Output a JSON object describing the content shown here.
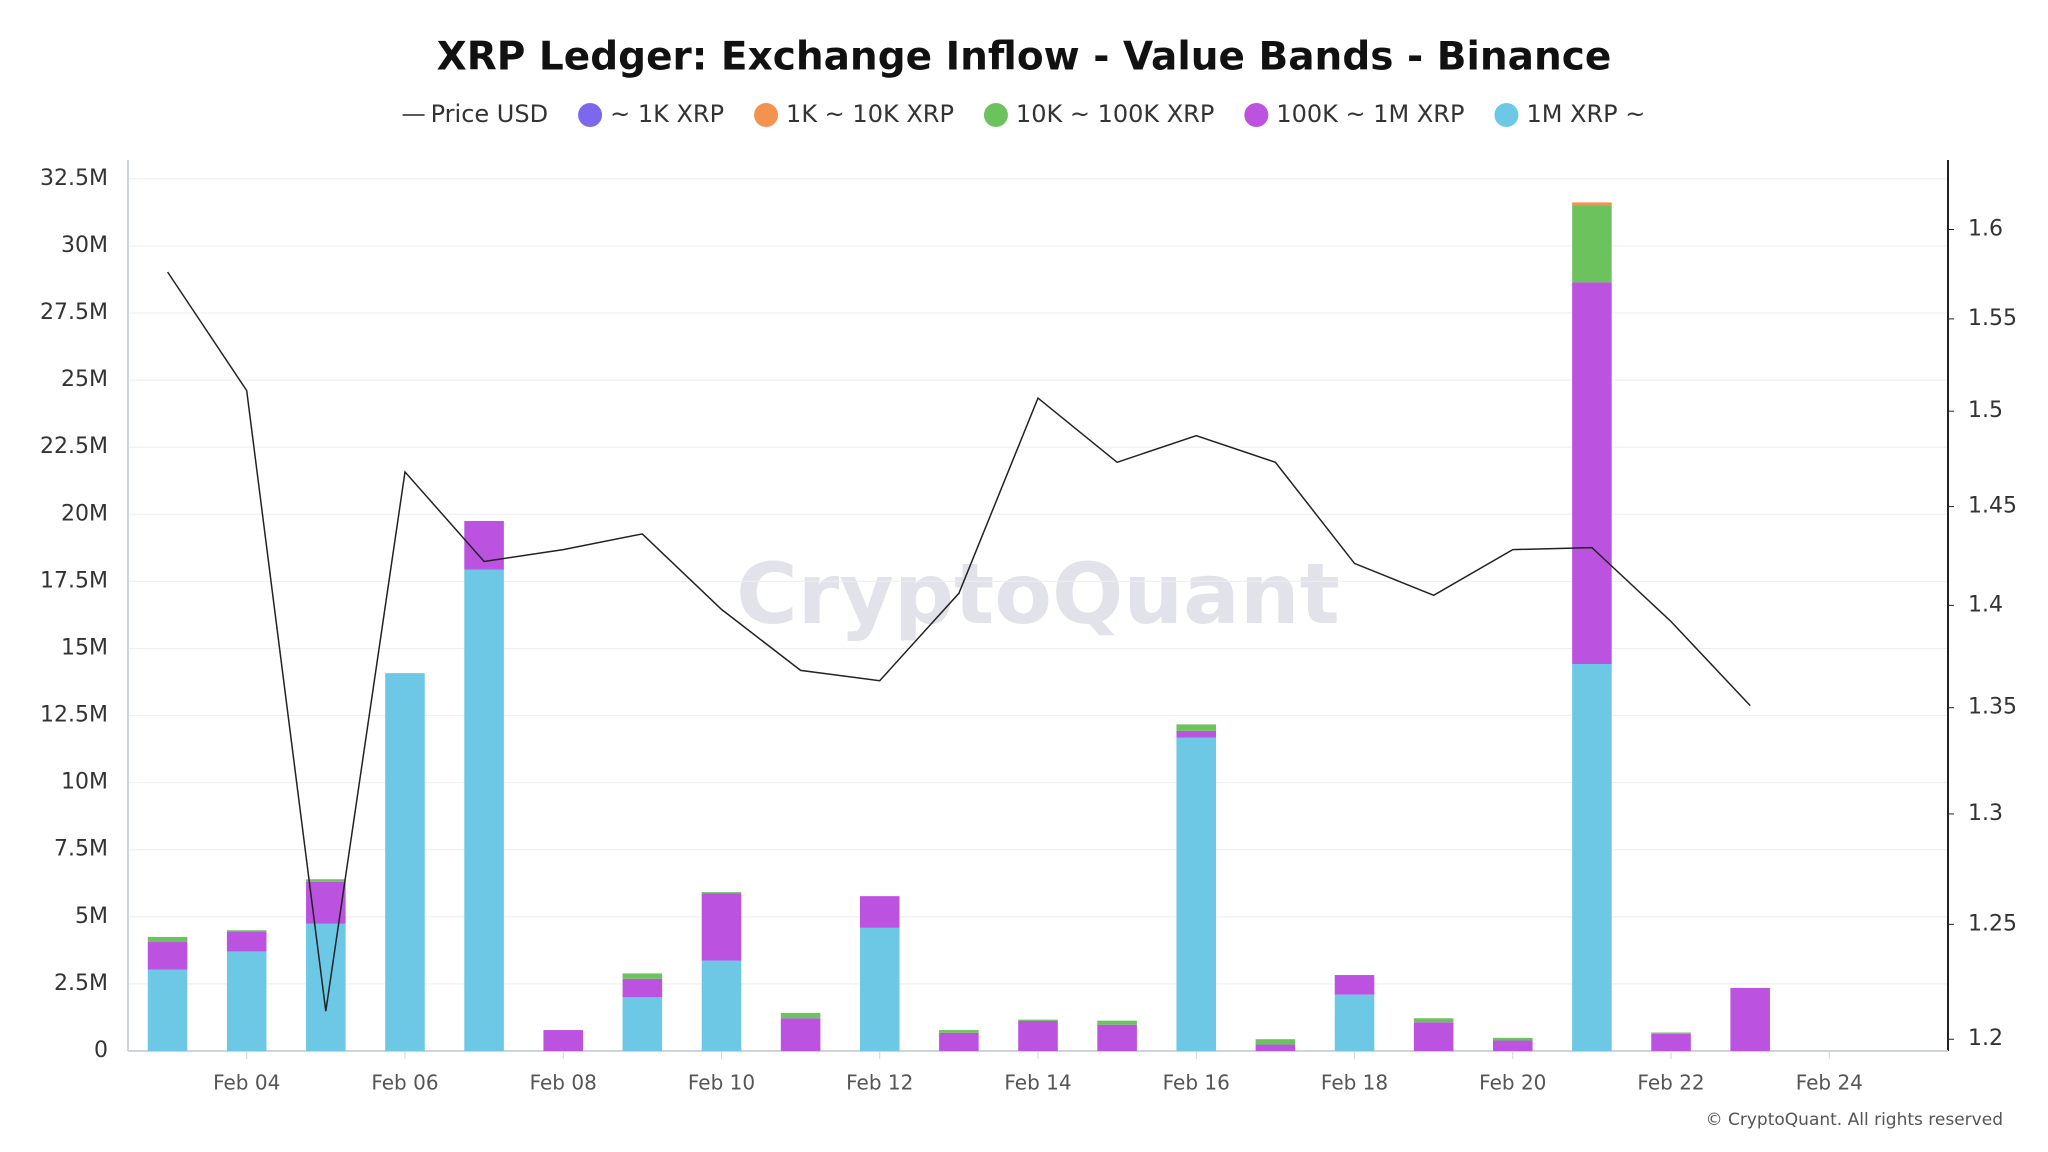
{
  "chart_data": {
    "type": "bar",
    "stacked": true,
    "title": "XRP Ledger: Exchange Inflow - Value Bands - Binance",
    "watermark": "CryptoQuant",
    "footer": "© CryptoQuant. All rights reserved",
    "categories": [
      null,
      "Feb 04",
      null,
      "Feb 06",
      null,
      "Feb 08",
      null,
      "Feb 10",
      null,
      "Feb 12",
      null,
      "Feb 14",
      null,
      "Feb 16",
      null,
      "Feb 18",
      null,
      "Feb 20",
      null,
      "Feb 22",
      null,
      "Feb 24",
      null
    ],
    "ylim": [
      0,
      33200000
    ],
    "yticks": [
      0,
      {
        "value": 2500000,
        "label": "2.5M"
      },
      {
        "value": 5000000,
        "label": "5M"
      },
      {
        "value": 7500000,
        "label": "7.5M"
      },
      {
        "value": 10000000,
        "label": "10M"
      },
      {
        "value": 12500000,
        "label": "12.5M"
      },
      {
        "value": 15000000,
        "label": "15M"
      },
      {
        "value": 17500000,
        "label": "17.5M"
      },
      {
        "value": 20000000,
        "label": "20M"
      },
      {
        "value": 22500000,
        "label": "22.5M"
      },
      {
        "value": 25000000,
        "label": "25M"
      },
      {
        "value": 27500000,
        "label": "27.5M"
      },
      {
        "value": 30000000,
        "label": "30M"
      },
      {
        "value": 32500000,
        "label": "32.5M"
      }
    ],
    "y2lim": [
      1.195,
      1.64
    ],
    "y2_log": true,
    "y2ticks": [
      1.2,
      1.25,
      1.3,
      1.35,
      1.4,
      1.45,
      1.5,
      1.55,
      1.6
    ],
    "grid": true,
    "series": [
      {
        "name": "Price USD",
        "type": "line",
        "axis": "y2",
        "color": "#222222",
        "values": [
          1.576,
          1.511,
          1.212,
          1.468,
          1.422,
          1.428,
          1.436,
          1.398,
          1.368,
          1.363,
          1.406,
          1.507,
          1.473,
          1.487,
          1.473,
          1.421,
          1.405,
          1.428,
          1.429,
          1.392,
          1.351,
          null,
          null
        ]
      },
      {
        "name": "~ 1K XRP",
        "color": "#7b68ee",
        "values": [
          0,
          0,
          0,
          0,
          0,
          0,
          0,
          0,
          0,
          0,
          0,
          0,
          0,
          0,
          0,
          0,
          0,
          0,
          0,
          0,
          0,
          null,
          null
        ]
      },
      {
        "name": "1K ~ 10K XRP",
        "color": "#f4924f",
        "values": [
          0,
          0,
          0,
          0,
          0,
          0,
          0,
          0,
          0,
          0,
          0,
          0,
          0,
          0,
          0,
          0,
          0,
          0,
          100000,
          0,
          0,
          null,
          null
        ]
      },
      {
        "name": "10K ~ 100K XRP",
        "color": "#6cc35d",
        "values": [
          190000,
          50000,
          100000,
          0,
          0,
          0,
          200000,
          50000,
          200000,
          0,
          100000,
          50000,
          150000,
          240000,
          200000,
          0,
          150000,
          100000,
          2880000,
          50000,
          0,
          null,
          null
        ]
      },
      {
        "name": "100K ~ 1M XRP",
        "color": "#bb52e0",
        "values": [
          1030000,
          740000,
          1560000,
          0,
          1810000,
          780000,
          690000,
          2500000,
          1220000,
          1180000,
          680000,
          1120000,
          980000,
          250000,
          240000,
          730000,
          1070000,
          390000,
          14220000,
          640000,
          2350000,
          null,
          null
        ]
      },
      {
        "name": "1M XRP ~",
        "color": "#6cc8e4",
        "values": [
          3030000,
          3710000,
          4740000,
          14080000,
          17940000,
          0,
          2000000,
          3370000,
          0,
          4590000,
          0,
          0,
          0,
          11680000,
          0,
          2100000,
          0,
          0,
          14420000,
          0,
          0,
          null,
          null
        ]
      }
    ]
  }
}
